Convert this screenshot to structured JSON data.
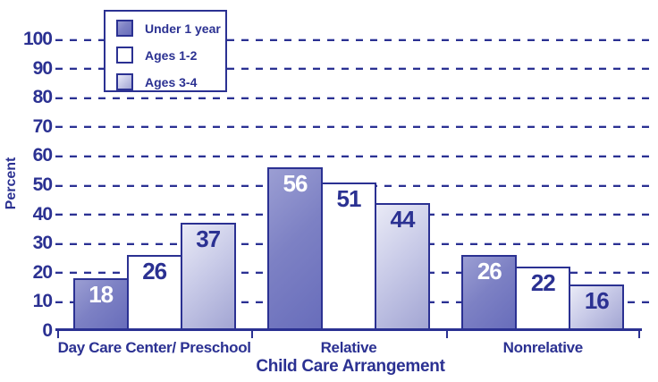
{
  "chart_data": {
    "type": "bar",
    "title": "",
    "categories": [
      "Day Care Center/ Preschool",
      "Relative",
      "Nonrelative"
    ],
    "series": [
      {
        "name": "Under 1 year",
        "values": [
          18,
          56,
          26
        ]
      },
      {
        "name": "Ages 1-2",
        "values": [
          26,
          51,
          22
        ]
      },
      {
        "name": "Ages 3-4",
        "values": [
          37,
          44,
          16
        ]
      }
    ],
    "xlabel": "Child Care Arrangement",
    "ylabel": "Percent",
    "ylim": [
      0,
      100
    ],
    "yticks": [
      0,
      10,
      20,
      30,
      40,
      50,
      60,
      70,
      80,
      90,
      100
    ],
    "grid": "horizontal-dashed",
    "legend": {
      "position": "top-left",
      "items": [
        "Under 1 year",
        "Ages 1-2",
        "Ages 3-4"
      ]
    }
  },
  "colors": {
    "ink": "#2b3192",
    "background": "#ffffff",
    "gridline_highlight": "#bcbfe2",
    "bar_under_1_year_gradient": [
      "#9b9ed3",
      "#686dbb"
    ],
    "bar_ages_1_2": "#ffffff",
    "bar_ages_3_4_gradient": [
      "#e9eaf6",
      "#a2a5d3"
    ],
    "value_label_on_dark_bar": "#ffffff"
  }
}
